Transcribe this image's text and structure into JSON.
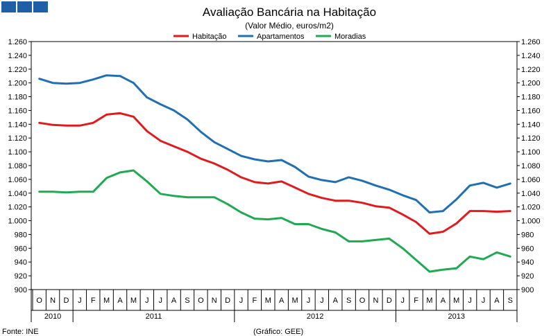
{
  "chart_data": {
    "type": "line",
    "title": "Avaliação Bancária na Habitação",
    "subtitle": "(Valor Médio, euros/m2)",
    "ylim": [
      900,
      1260
    ],
    "yticks": [
      "900",
      "920",
      "940",
      "960",
      "980",
      "1.000",
      "1.020",
      "1.040",
      "1.060",
      "1.080",
      "1.100",
      "1.120",
      "1.140",
      "1.160",
      "1.180",
      "1.200",
      "1.220",
      "1.240",
      "1.260"
    ],
    "months": [
      "O",
      "N",
      "D",
      "J",
      "F",
      "M",
      "A",
      "M",
      "J",
      "J",
      "A",
      "S",
      "O",
      "N",
      "D",
      "J",
      "F",
      "M",
      "A",
      "M",
      "J",
      "J",
      "A",
      "S",
      "O",
      "N",
      "D",
      "J",
      "F",
      "M",
      "A",
      "M",
      "J",
      "J",
      "A",
      "S"
    ],
    "years": [
      {
        "label": "2010",
        "start": 0,
        "end": 3
      },
      {
        "label": "2011",
        "start": 3,
        "end": 15
      },
      {
        "label": "2012",
        "start": 15,
        "end": 27
      },
      {
        "label": "2013",
        "start": 27,
        "end": 36
      }
    ],
    "series": [
      {
        "name": "Habitação",
        "color": "#e31a1c",
        "values": [
          1142,
          1139,
          1138,
          1138,
          1142,
          1154,
          1156,
          1151,
          1130,
          1116,
          1108,
          1100,
          1090,
          1083,
          1074,
          1063,
          1056,
          1054,
          1057,
          1048,
          1039,
          1033,
          1029,
          1029,
          1026,
          1021,
          1019,
          1009,
          998,
          981,
          984,
          996,
          1014,
          1014,
          1013,
          1014
        ]
      },
      {
        "name": "Apartamentos",
        "color": "#1f6fb4",
        "values": [
          1206,
          1200,
          1199,
          1200,
          1205,
          1211,
          1210,
          1200,
          1179,
          1169,
          1160,
          1147,
          1129,
          1114,
          1104,
          1094,
          1089,
          1086,
          1088,
          1078,
          1064,
          1059,
          1056,
          1063,
          1058,
          1051,
          1045,
          1037,
          1030,
          1012,
          1014,
          1031,
          1051,
          1055,
          1048,
          1054
        ]
      },
      {
        "name": "Moradias",
        "color": "#1eaa50",
        "values": [
          1042,
          1042,
          1041,
          1042,
          1042,
          1062,
          1070,
          1073,
          1057,
          1039,
          1036,
          1034,
          1034,
          1034,
          1024,
          1012,
          1003,
          1002,
          1004,
          995,
          995,
          988,
          983,
          970,
          970,
          972,
          974,
          960,
          943,
          926,
          929,
          931,
          948,
          944,
          954,
          948
        ]
      }
    ]
  },
  "footer": {
    "source": "Fonte: INE",
    "credit": "(Gráfico: GEE)"
  },
  "header_icon": "three-blue-squares-logo"
}
